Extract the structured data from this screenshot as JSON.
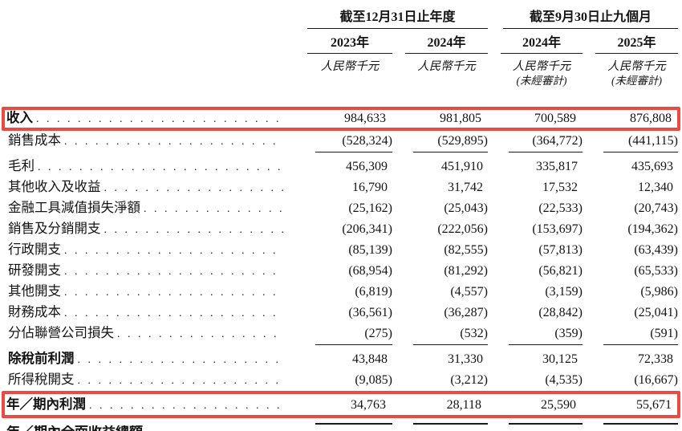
{
  "document": {
    "highlight_color": "#e94b44",
    "header": {
      "groups": [
        {
          "title": "截至12月31日止年度"
        },
        {
          "title": "截至9月30日止九個月"
        }
      ],
      "columns": [
        {
          "year": "2023年",
          "unit": "人民幣千元",
          "unaudited": ""
        },
        {
          "year": "2024年",
          "unit": "人民幣千元",
          "unaudited": ""
        },
        {
          "year": "2024年",
          "unit": "人民幣千元",
          "unaudited": "(未經審計)"
        },
        {
          "year": "2025年",
          "unit": "人民幣千元",
          "unaudited": "(未經審計)"
        }
      ]
    },
    "rows": [
      {
        "label": "收入",
        "bold": true,
        "highlight": true,
        "rule_below": "none",
        "values": [
          "984,633",
          "981,805",
          "700,589",
          "876,808"
        ]
      },
      {
        "label": "銷售成本",
        "bold": false,
        "highlight": false,
        "rule_below": "single",
        "values": [
          "(528,324)",
          "(529,895)",
          "(364,772)",
          "(441,115)"
        ]
      },
      {
        "label": "毛利",
        "bold": false,
        "highlight": false,
        "rule_below": "none",
        "values": [
          "456,309",
          "451,910",
          "335,817",
          "435,693"
        ]
      },
      {
        "label": "其他收入及收益",
        "bold": false,
        "highlight": false,
        "rule_below": "none",
        "values": [
          "16,790",
          "31,742",
          "17,532",
          "12,340"
        ]
      },
      {
        "label": "金融工具減值損失淨額",
        "bold": false,
        "highlight": false,
        "rule_below": "none",
        "values": [
          "(25,162)",
          "(25,043)",
          "(22,533)",
          "(20,743)"
        ]
      },
      {
        "label": "銷售及分銷開支",
        "bold": false,
        "highlight": false,
        "rule_below": "none",
        "values": [
          "(206,341)",
          "(222,056)",
          "(153,697)",
          "(194,362)"
        ]
      },
      {
        "label": "行政開支",
        "bold": false,
        "highlight": false,
        "rule_below": "none",
        "values": [
          "(85,139)",
          "(82,555)",
          "(57,813)",
          "(63,439)"
        ]
      },
      {
        "label": "研發開支",
        "bold": false,
        "highlight": false,
        "rule_below": "none",
        "values": [
          "(68,954)",
          "(81,292)",
          "(56,821)",
          "(65,533)"
        ]
      },
      {
        "label": "其他開支",
        "bold": false,
        "highlight": false,
        "rule_below": "none",
        "values": [
          "(6,819)",
          "(4,557)",
          "(3,159)",
          "(5,986)"
        ]
      },
      {
        "label": "財務成本",
        "bold": false,
        "highlight": false,
        "rule_below": "none",
        "values": [
          "(36,561)",
          "(36,287)",
          "(28,842)",
          "(25,041)"
        ]
      },
      {
        "label": "分佔聯營公司損失",
        "bold": false,
        "highlight": false,
        "rule_below": "single",
        "values": [
          "(275)",
          "(532)",
          "(359)",
          "(591)"
        ]
      },
      {
        "label": "除稅前利潤",
        "bold": true,
        "highlight": false,
        "rule_below": "none",
        "values": [
          "43,848",
          "31,330",
          "30,125",
          "72,338"
        ]
      },
      {
        "label": "所得稅開支",
        "bold": false,
        "highlight": false,
        "rule_below": "none",
        "values": [
          "(9,085)",
          "(3,212)",
          "(4,535)",
          "(16,667)"
        ]
      },
      {
        "label": "年／期內利潤",
        "bold": true,
        "highlight": true,
        "rule_below": "final",
        "values": [
          "34,763",
          "28,118",
          "25,590",
          "55,671"
        ]
      }
    ],
    "clipped_next_row_fragment": "年／期內全面收益總額"
  }
}
